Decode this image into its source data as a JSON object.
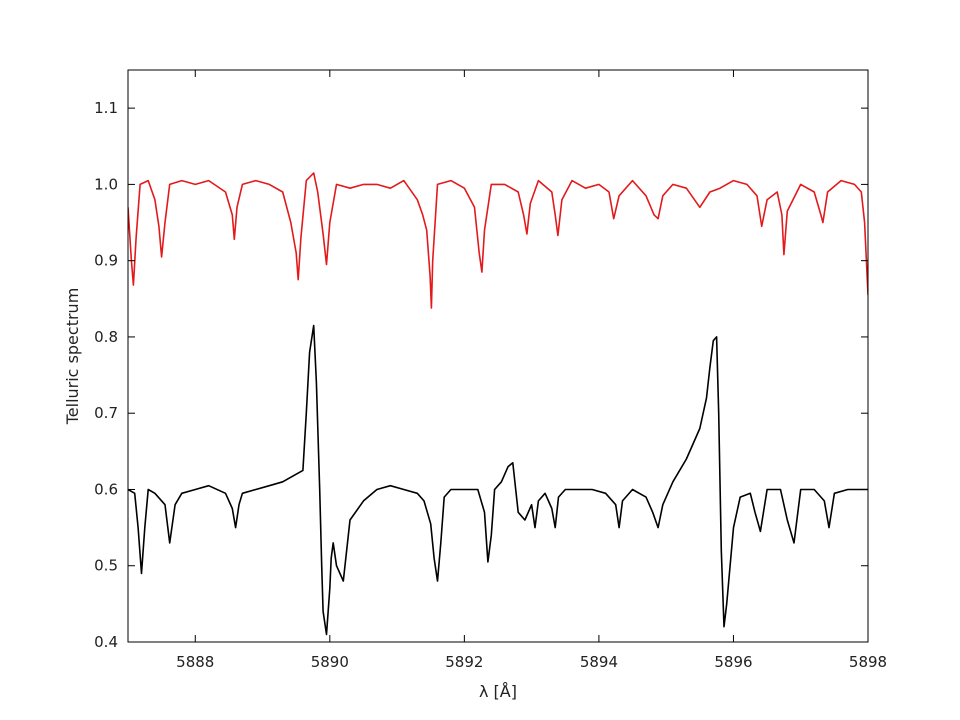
{
  "chart_data": {
    "type": "line",
    "title": "",
    "xlabel": "λ [Å]",
    "ylabel": "Telluric spectrum",
    "xlim": [
      5887,
      5898
    ],
    "ylim": [
      0.4,
      1.15
    ],
    "x_ticks": [
      5888,
      5890,
      5892,
      5894,
      5896,
      5898
    ],
    "y_ticks": [
      0.4,
      0.5,
      0.6,
      0.7,
      0.8,
      0.9,
      1.0,
      1.1
    ],
    "x_tick_labels": [
      "5888",
      "5890",
      "5892",
      "5894",
      "5896",
      "5898"
    ],
    "y_tick_labels": [
      "0.4",
      "0.5",
      "0.6",
      "0.7",
      "0.8",
      "0.9",
      "1.0",
      "1.1"
    ],
    "grid": false,
    "legend": "none",
    "series": [
      {
        "color": "#e31a1c",
        "x": [
          5887.0,
          5887.05,
          5887.08,
          5887.12,
          5887.18,
          5887.3,
          5887.4,
          5887.46,
          5887.5,
          5887.55,
          5887.62,
          5887.8,
          5888.0,
          5888.2,
          5888.45,
          5888.55,
          5888.58,
          5888.62,
          5888.7,
          5888.9,
          5889.1,
          5889.3,
          5889.42,
          5889.5,
          5889.53,
          5889.57,
          5889.65,
          5889.76,
          5889.82,
          5889.9,
          5889.95,
          5890.0,
          5890.1,
          5890.3,
          5890.5,
          5890.7,
          5890.9,
          5891.1,
          5891.3,
          5891.38,
          5891.44,
          5891.49,
          5891.51,
          5891.53,
          5891.6,
          5891.8,
          5892.0,
          5892.15,
          5892.22,
          5892.26,
          5892.3,
          5892.4,
          5892.6,
          5892.8,
          5892.88,
          5892.93,
          5892.98,
          5893.1,
          5893.3,
          5893.35,
          5893.39,
          5893.45,
          5893.6,
          5893.8,
          5894.0,
          5894.15,
          5894.22,
          5894.3,
          5894.5,
          5894.7,
          5894.82,
          5894.88,
          5894.95,
          5895.1,
          5895.3,
          5895.5,
          5895.65,
          5895.8,
          5896.0,
          5896.2,
          5896.35,
          5896.42,
          5896.5,
          5896.65,
          5896.72,
          5896.75,
          5896.8,
          5897.0,
          5897.2,
          5897.3,
          5897.33,
          5897.4,
          5897.6,
          5897.8,
          5897.9,
          5897.95,
          5898.0
        ],
        "y": [
          0.97,
          0.9,
          0.868,
          0.93,
          1.0,
          1.005,
          0.98,
          0.945,
          0.905,
          0.95,
          1.0,
          1.005,
          1.0,
          1.005,
          0.99,
          0.96,
          0.928,
          0.97,
          1.0,
          1.005,
          1.0,
          0.99,
          0.95,
          0.91,
          0.875,
          0.93,
          1.005,
          1.015,
          0.99,
          0.935,
          0.895,
          0.95,
          1.0,
          0.995,
          1.0,
          1.0,
          0.995,
          1.005,
          0.98,
          0.96,
          0.94,
          0.88,
          0.838,
          0.9,
          1.0,
          1.005,
          0.995,
          0.97,
          0.91,
          0.885,
          0.94,
          1.0,
          1.0,
          0.99,
          0.96,
          0.935,
          0.975,
          1.005,
          0.99,
          0.96,
          0.933,
          0.98,
          1.005,
          0.995,
          1.0,
          0.99,
          0.955,
          0.985,
          1.005,
          0.985,
          0.96,
          0.955,
          0.985,
          1.0,
          0.995,
          0.97,
          0.99,
          0.995,
          1.005,
          1.0,
          0.985,
          0.945,
          0.98,
          0.99,
          0.96,
          0.908,
          0.965,
          1.0,
          0.99,
          0.96,
          0.95,
          0.99,
          1.005,
          1.0,
          0.99,
          0.95,
          0.855
        ]
      },
      {
        "color": "#000000",
        "x": [
          5887.0,
          5887.1,
          5887.15,
          5887.2,
          5887.25,
          5887.3,
          5887.4,
          5887.55,
          5887.62,
          5887.7,
          5887.8,
          5888.0,
          5888.2,
          5888.45,
          5888.55,
          5888.6,
          5888.65,
          5888.7,
          5888.9,
          5889.1,
          5889.3,
          5889.5,
          5889.6,
          5889.65,
          5889.7,
          5889.76,
          5889.8,
          5889.85,
          5889.88,
          5889.9,
          5889.95,
          5890.0,
          5890.02,
          5890.05,
          5890.1,
          5890.2,
          5890.3,
          5890.5,
          5890.7,
          5890.9,
          5891.1,
          5891.3,
          5891.4,
          5891.5,
          5891.55,
          5891.6,
          5891.65,
          5891.7,
          5891.8,
          5892.0,
          5892.2,
          5892.3,
          5892.35,
          5892.4,
          5892.45,
          5892.55,
          5892.65,
          5892.72,
          5892.8,
          5892.9,
          5893.0,
          5893.05,
          5893.1,
          5893.2,
          5893.3,
          5893.35,
          5893.4,
          5893.5,
          5893.7,
          5893.9,
          5894.1,
          5894.25,
          5894.3,
          5894.35,
          5894.5,
          5894.7,
          5894.8,
          5894.88,
          5894.95,
          5895.1,
          5895.3,
          5895.5,
          5895.6,
          5895.65,
          5895.7,
          5895.75,
          5895.78,
          5895.82,
          5895.86,
          5895.9,
          5896.0,
          5896.1,
          5896.25,
          5896.32,
          5896.4,
          5896.5,
          5896.7,
          5896.8,
          5896.9,
          5897.0,
          5897.2,
          5897.35,
          5897.42,
          5897.5,
          5897.7,
          5897.9,
          5898.0
        ],
        "y": [
          0.6,
          0.595,
          0.55,
          0.49,
          0.55,
          0.6,
          0.595,
          0.58,
          0.53,
          0.58,
          0.595,
          0.6,
          0.605,
          0.595,
          0.575,
          0.55,
          0.58,
          0.595,
          0.6,
          0.605,
          0.61,
          0.62,
          0.625,
          0.7,
          0.78,
          0.815,
          0.74,
          0.6,
          0.5,
          0.44,
          0.41,
          0.47,
          0.51,
          0.53,
          0.5,
          0.48,
          0.56,
          0.585,
          0.6,
          0.605,
          0.6,
          0.595,
          0.585,
          0.555,
          0.51,
          0.48,
          0.53,
          0.59,
          0.6,
          0.6,
          0.6,
          0.57,
          0.505,
          0.54,
          0.6,
          0.61,
          0.63,
          0.635,
          0.57,
          0.56,
          0.58,
          0.55,
          0.585,
          0.595,
          0.575,
          0.55,
          0.59,
          0.6,
          0.6,
          0.6,
          0.595,
          0.58,
          0.55,
          0.585,
          0.6,
          0.59,
          0.57,
          0.55,
          0.58,
          0.61,
          0.64,
          0.68,
          0.72,
          0.76,
          0.795,
          0.8,
          0.7,
          0.52,
          0.42,
          0.45,
          0.55,
          0.59,
          0.595,
          0.57,
          0.545,
          0.6,
          0.6,
          0.56,
          0.53,
          0.6,
          0.6,
          0.585,
          0.55,
          0.595,
          0.6,
          0.6,
          0.6
        ]
      }
    ]
  }
}
